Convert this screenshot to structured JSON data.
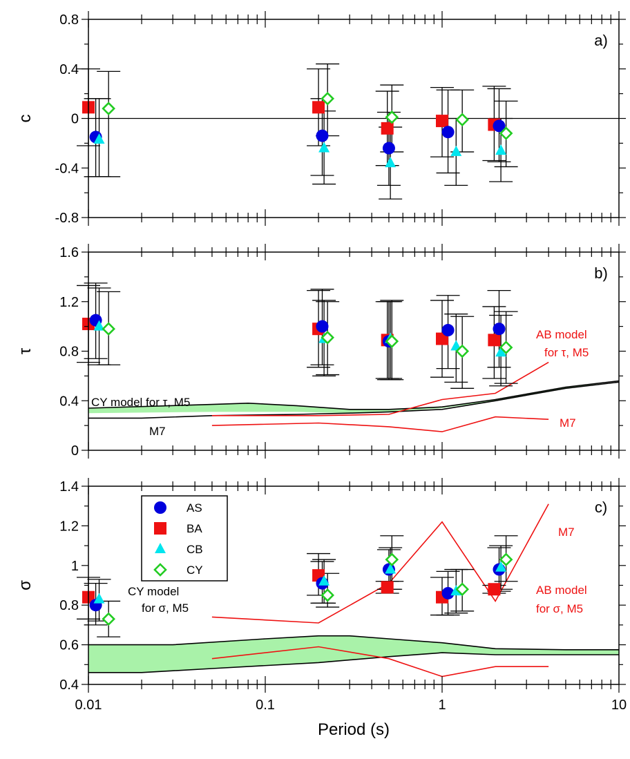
{
  "chart_data": {
    "type": "scatter",
    "xlabel": "Period (s)",
    "xscale": "log",
    "xlim": [
      0.01,
      10
    ],
    "xticks": [
      0.01,
      0.1,
      1,
      10
    ],
    "xtick_labels": [
      "0.01",
      "0.1",
      "1",
      "10"
    ],
    "legend": {
      "placement": "inside panel c, top-left",
      "entries": [
        {
          "name": "AS",
          "color": "#0000dd",
          "marker": "circle"
        },
        {
          "name": "BA",
          "color": "#ee1111",
          "marker": "square"
        },
        {
          "name": "CB",
          "color": "#00e5ee",
          "marker": "triangle"
        },
        {
          "name": "CY",
          "color": "#22cc22",
          "marker": "diamond-open"
        }
      ]
    },
    "panels": [
      {
        "id": "a",
        "panel_label": "a)",
        "ylabel": "c",
        "ylim": [
          -0.8,
          0.8
        ],
        "yticks": [
          -0.8,
          -0.4,
          0,
          0.4,
          0.8
        ],
        "ytick_labels": [
          "-0.8",
          "-0.4",
          "0",
          "0.4",
          "0.8"
        ],
        "zero_line": true,
        "series": [
          {
            "name": "AS",
            "points": [
              [
                0.011,
                -0.15,
                -0.47,
                0.16
              ],
              [
                0.21,
                -0.14,
                -0.46,
                0.16
              ],
              [
                0.5,
                -0.24,
                -0.54,
                0.05
              ],
              [
                1.08,
                -0.11,
                -0.44,
                0.23
              ],
              [
                2.1,
                -0.06,
                -0.35,
                0.24
              ]
            ]
          },
          {
            "name": "BA",
            "points": [
              [
                0.01,
                0.09,
                -0.22,
                0.4
              ],
              [
                0.2,
                0.09,
                -0.22,
                0.4
              ],
              [
                0.49,
                -0.08,
                -0.38,
                0.22
              ],
              [
                1.0,
                -0.02,
                -0.31,
                0.25
              ],
              [
                1.97,
                -0.05,
                -0.34,
                0.26
              ]
            ]
          },
          {
            "name": "CB",
            "points": [
              [
                0.0115,
                -0.17,
                -0.47,
                0.16
              ],
              [
                0.215,
                -0.24,
                -0.53,
                0.06
              ],
              [
                0.51,
                -0.36,
                -0.65,
                -0.07
              ],
              [
                1.2,
                -0.27,
                -0.54,
                0.0
              ],
              [
                2.15,
                -0.26,
                -0.51,
                0.0
              ]
            ]
          },
          {
            "name": "CY",
            "points": [
              [
                0.013,
                0.08,
                -0.47,
                0.38
              ],
              [
                0.225,
                0.16,
                -0.14,
                0.44
              ],
              [
                0.52,
                0.01,
                -0.27,
                0.27
              ],
              [
                1.3,
                -0.01,
                -0.27,
                0.23
              ],
              [
                2.3,
                -0.12,
                -0.39,
                0.14
              ]
            ]
          }
        ]
      },
      {
        "id": "b",
        "panel_label": "b)",
        "ylabel": "τ",
        "ylim": [
          0,
          1.6
        ],
        "yticks": [
          0,
          0.4,
          0.8,
          1.2,
          1.6
        ],
        "ytick_labels": [
          "0",
          "0.4",
          "0.8",
          "1.2",
          "1.6"
        ],
        "series": [
          {
            "name": "AS",
            "points": [
              [
                0.011,
                1.05,
                0.74,
                1.35
              ],
              [
                0.21,
                1.0,
                0.69,
                1.3
              ],
              [
                0.5,
                0.88,
                0.57,
                1.2
              ],
              [
                1.08,
                0.97,
                0.66,
                1.25
              ],
              [
                2.1,
                0.98,
                0.67,
                1.29
              ]
            ]
          },
          {
            "name": "BA",
            "points": [
              [
                0.01,
                1.02,
                0.71,
                1.33
              ],
              [
                0.2,
                0.98,
                0.67,
                1.29
              ],
              [
                0.49,
                0.89,
                0.58,
                1.2
              ],
              [
                1.0,
                0.9,
                0.59,
                1.21
              ],
              [
                1.97,
                0.89,
                0.58,
                1.16
              ]
            ]
          },
          {
            "name": "CB",
            "points": [
              [
                0.0115,
                1.0,
                0.69,
                1.31
              ],
              [
                0.215,
                0.9,
                0.6,
                1.21
              ],
              [
                0.51,
                0.9,
                0.58,
                1.2
              ],
              [
                1.2,
                0.84,
                0.55,
                1.1
              ],
              [
                2.15,
                0.79,
                0.52,
                1.09
              ]
            ]
          },
          {
            "name": "CY",
            "points": [
              [
                0.013,
                0.98,
                0.69,
                1.28
              ],
              [
                0.225,
                0.91,
                0.61,
                1.2
              ],
              [
                0.52,
                0.88,
                0.57,
                1.21
              ],
              [
                1.3,
                0.8,
                0.5,
                1.08
              ],
              [
                2.3,
                0.83,
                0.54,
                1.12
              ]
            ]
          }
        ],
        "bands": [
          {
            "name": "CY model band",
            "lower": [
              [
                0.01,
                0.3
              ],
              [
                0.05,
                0.31
              ],
              [
                0.15,
                0.31
              ],
              [
                0.3,
                0.3
              ],
              [
                0.5,
                0.31
              ],
              [
                1.0,
                0.34
              ],
              [
                2.0,
                0.4
              ],
              [
                5.0,
                0.5
              ],
              [
                10,
                0.56
              ]
            ],
            "upper": [
              [
                0.01,
                0.34
              ],
              [
                0.05,
                0.37
              ],
              [
                0.08,
                0.38
              ],
              [
                0.15,
                0.36
              ],
              [
                0.3,
                0.33
              ],
              [
                0.5,
                0.33
              ],
              [
                1.0,
                0.35
              ],
              [
                2.0,
                0.41
              ],
              [
                5.0,
                0.51
              ],
              [
                10,
                0.56
              ]
            ]
          }
        ],
        "lines": [
          {
            "name": "CY M7",
            "color": "#000000",
            "points": [
              [
                0.01,
                0.26
              ],
              [
                0.02,
                0.26
              ],
              [
                0.05,
                0.28
              ],
              [
                0.15,
                0.29
              ],
              [
                0.3,
                0.3
              ],
              [
                0.5,
                0.31
              ],
              [
                1.0,
                0.33
              ],
              [
                2.0,
                0.4
              ],
              [
                5.0,
                0.5
              ],
              [
                10,
                0.55
              ]
            ]
          },
          {
            "name": "AB M5",
            "color": "#ee1111",
            "points": [
              [
                0.05,
                0.28
              ],
              [
                0.2,
                0.28
              ],
              [
                0.5,
                0.29
              ],
              [
                1.0,
                0.41
              ],
              [
                2.0,
                0.46
              ],
              [
                4.0,
                0.71
              ]
            ]
          },
          {
            "name": "AB M7",
            "color": "#ee1111",
            "points": [
              [
                0.05,
                0.2
              ],
              [
                0.2,
                0.22
              ],
              [
                0.5,
                0.19
              ],
              [
                1.0,
                0.15
              ],
              [
                2.0,
                0.27
              ],
              [
                4.0,
                0.25
              ]
            ]
          }
        ],
        "annotations": [
          {
            "text": "CY model for τ, M5",
            "color": "#000000"
          },
          {
            "text": "M7",
            "color": "#000000"
          },
          {
            "text": "AB model",
            "color": "#ee1111"
          },
          {
            "text": "for τ, M5",
            "color": "#ee1111"
          },
          {
            "text": "M7",
            "color": "#ee1111"
          }
        ]
      },
      {
        "id": "c",
        "panel_label": "c)",
        "ylabel": "σ",
        "ylim": [
          0.4,
          1.4
        ],
        "yticks": [
          0.4,
          0.6,
          0.8,
          1.0,
          1.2,
          1.4
        ],
        "ytick_labels": [
          "0.4",
          "0.6",
          "0.8",
          "1",
          "1.2",
          "1.4"
        ],
        "series": [
          {
            "name": "AS",
            "points": [
              [
                0.011,
                0.8,
                0.7,
                0.91
              ],
              [
                0.21,
                0.91,
                0.81,
                1.02
              ],
              [
                0.5,
                0.98,
                0.88,
                1.08
              ],
              [
                1.08,
                0.86,
                0.75,
                0.97
              ],
              [
                2.1,
                0.98,
                0.87,
                1.09
              ]
            ]
          },
          {
            "name": "BA",
            "points": [
              [
                0.01,
                0.84,
                0.73,
                0.94
              ],
              [
                0.2,
                0.95,
                0.85,
                1.06
              ],
              [
                0.49,
                0.89,
                0.86,
                0.92
              ],
              [
                1.0,
                0.84,
                0.75,
                0.94
              ],
              [
                1.97,
                0.88,
                0.86,
                0.9
              ]
            ]
          },
          {
            "name": "CB",
            "points": [
              [
                0.0115,
                0.83,
                0.72,
                0.93
              ],
              [
                0.215,
                0.92,
                0.81,
                1.03
              ],
              [
                0.51,
                0.98,
                0.88,
                1.09
              ],
              [
                1.2,
                0.87,
                0.76,
                0.98
              ],
              [
                2.15,
                0.99,
                0.88,
                1.1
              ]
            ]
          },
          {
            "name": "CY",
            "points": [
              [
                0.013,
                0.73,
                0.64,
                0.82
              ],
              [
                0.225,
                0.85,
                0.79,
                0.96
              ],
              [
                0.52,
                1.03,
                0.92,
                1.15
              ],
              [
                1.3,
                0.88,
                0.77,
                0.98
              ],
              [
                2.3,
                1.03,
                0.92,
                1.15
              ]
            ]
          }
        ],
        "bands": [
          {
            "name": "CY model band",
            "lower": [
              [
                0.01,
                0.46
              ],
              [
                0.02,
                0.46
              ],
              [
                0.05,
                0.48
              ],
              [
                0.2,
                0.51
              ],
              [
                0.5,
                0.54
              ],
              [
                1.0,
                0.56
              ],
              [
                2.0,
                0.55
              ],
              [
                5.0,
                0.55
              ],
              [
                10,
                0.55
              ]
            ],
            "upper": [
              [
                0.01,
                0.6
              ],
              [
                0.03,
                0.6
              ],
              [
                0.1,
                0.63
              ],
              [
                0.2,
                0.645
              ],
              [
                0.3,
                0.645
              ],
              [
                0.5,
                0.63
              ],
              [
                1.0,
                0.61
              ],
              [
                2.0,
                0.58
              ],
              [
                5.0,
                0.575
              ],
              [
                10,
                0.575
              ]
            ]
          }
        ],
        "lines": [
          {
            "name": "AB M5",
            "color": "#ee1111",
            "points": [
              [
                0.05,
                0.74
              ],
              [
                0.2,
                0.71
              ],
              [
                0.5,
                0.91
              ],
              [
                1.0,
                1.22
              ],
              [
                2.0,
                0.82
              ],
              [
                4.0,
                1.31
              ]
            ]
          },
          {
            "name": "AB M7",
            "color": "#ee1111",
            "points": [
              [
                0.05,
                0.53
              ],
              [
                0.2,
                0.59
              ],
              [
                0.5,
                0.53
              ],
              [
                1.0,
                0.44
              ],
              [
                2.0,
                0.49
              ],
              [
                4.0,
                0.49
              ]
            ]
          }
        ],
        "annotations": [
          {
            "text": "CY model",
            "color": "#000000"
          },
          {
            "text": "for σ, M5",
            "color": "#000000"
          },
          {
            "text": "M7",
            "color": "#000000"
          },
          {
            "text": "AB model",
            "color": "#ee1111"
          },
          {
            "text": "for σ, M5",
            "color": "#ee1111"
          },
          {
            "text": "M7",
            "color": "#ee1111"
          }
        ]
      }
    ]
  }
}
